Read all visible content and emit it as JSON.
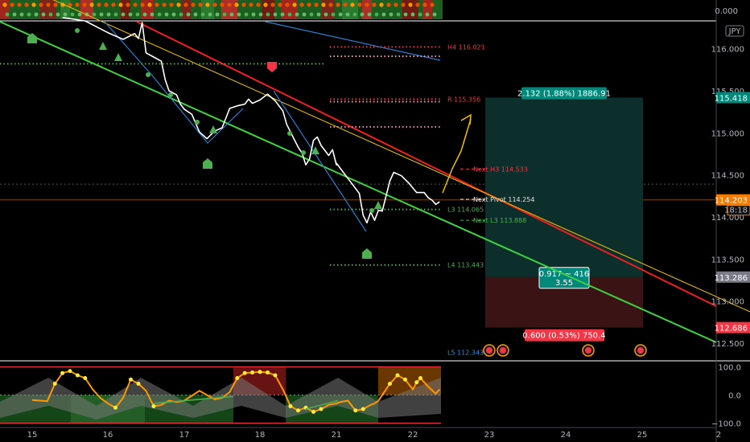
{
  "chart_data": {
    "type": "line",
    "currency_badge": "JPY",
    "x_ticks": [
      "15",
      "16",
      "17",
      "18",
      "21",
      "22",
      "23",
      "24",
      "25",
      "2"
    ],
    "y_ticks": [
      "116.000",
      "115.500",
      "115.000",
      "114.500",
      "114.000",
      "113.500",
      "113.000",
      "112.500"
    ],
    "top_strip_value": "0.000",
    "ylim": [
      112.31,
      116.32
    ],
    "price_series": [
      [
        15.4,
        116.37
      ],
      [
        15.7,
        116.33
      ],
      [
        16.0,
        116.19
      ],
      [
        16.2,
        116.11
      ],
      [
        16.35,
        116.18
      ],
      [
        16.4,
        116.12
      ],
      [
        16.45,
        116.31
      ],
      [
        16.5,
        115.95
      ],
      [
        16.6,
        115.9
      ],
      [
        16.7,
        115.85
      ],
      [
        16.75,
        115.63
      ],
      [
        16.8,
        115.5
      ],
      [
        16.9,
        115.45
      ],
      [
        16.95,
        115.34
      ],
      [
        17.0,
        115.28
      ],
      [
        17.1,
        115.22
      ],
      [
        17.2,
        115.01
      ],
      [
        17.3,
        114.93
      ],
      [
        17.4,
        115.02
      ],
      [
        17.5,
        115.06
      ],
      [
        17.6,
        115.29
      ],
      [
        17.7,
        115.32
      ],
      [
        17.8,
        115.34
      ],
      [
        17.85,
        115.4
      ],
      [
        17.9,
        115.35
      ],
      [
        18.0,
        115.39
      ],
      [
        18.1,
        115.46
      ],
      [
        18.2,
        115.38
      ],
      [
        18.3,
        115.26
      ],
      [
        18.35,
        115.1
      ],
      [
        18.5,
        114.83
      ],
      [
        18.55,
        114.76
      ],
      [
        18.6,
        114.62
      ],
      [
        18.65,
        114.69
      ],
      [
        18.7,
        114.91
      ],
      [
        18.75,
        114.95
      ],
      [
        18.8,
        114.85
      ],
      [
        18.9,
        114.73
      ],
      [
        18.95,
        114.8
      ],
      [
        19.0,
        114.62
      ],
      [
        19.05,
        114.64
      ],
      [
        21.3,
        114.28
      ],
      [
        21.35,
        114.02
      ],
      [
        21.4,
        113.93
      ],
      [
        21.45,
        114.06
      ],
      [
        21.5,
        113.96
      ],
      [
        21.55,
        114.08
      ],
      [
        21.6,
        114.07
      ],
      [
        21.7,
        114.43
      ],
      [
        21.75,
        114.53
      ],
      [
        21.85,
        114.49
      ],
      [
        21.95,
        114.4
      ],
      [
        22.05,
        114.29
      ],
      [
        22.15,
        114.29
      ],
      [
        22.2,
        114.23
      ],
      [
        22.25,
        114.2
      ],
      [
        22.3,
        114.15
      ],
      [
        22.35,
        114.18
      ]
    ],
    "last_price": "114.203",
    "countdown": "18:18",
    "price_levels": [
      {
        "label": "H4 116.021",
        "value": 116.02,
        "color": "#f23645"
      },
      {
        "label": "R 115.356",
        "value": 115.4,
        "color": "#f23645"
      },
      {
        "label": "Next H3 114.533",
        "value": 114.57,
        "color": "#f23645"
      },
      {
        "label": "Next Pivot 114.254",
        "value": 114.21,
        "color": "#e0e0e0"
      },
      {
        "label": "L3 114.065",
        "value": 114.09,
        "color": "#4caf50"
      },
      {
        "label": "Next L3 113.888",
        "value": 113.96,
        "color": "#4caf50"
      },
      {
        "label": "L4 113.443",
        "value": 113.43,
        "color": "#4caf50"
      },
      {
        "label": "L5 112.343",
        "value": 112.39,
        "color": "#2196f3"
      }
    ],
    "position": {
      "entry": "113.286",
      "target": "115.418",
      "stop": "112.686",
      "target_label": "2.132 (1.88%) 1886.91",
      "stop_label": "0.600 (0.53%) 750.4",
      "ratio_line1": "0.917 ~ 416",
      "ratio_line2": "3.55"
    },
    "oscillator_ticks": [
      "100.0",
      "0.0",
      "−100.0"
    ],
    "oscillator_ylim": [
      -110,
      110
    ],
    "oscillator_series": [
      [
        15.0,
        -18
      ],
      [
        15.2,
        -22
      ],
      [
        15.3,
        40
      ],
      [
        15.4,
        78
      ],
      [
        15.5,
        85
      ],
      [
        15.6,
        70
      ],
      [
        15.7,
        60
      ],
      [
        15.8,
        20
      ],
      [
        15.9,
        -10
      ],
      [
        16.0,
        -30
      ],
      [
        16.1,
        -45
      ],
      [
        16.2,
        -10
      ],
      [
        16.3,
        55
      ],
      [
        16.4,
        40
      ],
      [
        16.5,
        15
      ],
      [
        16.6,
        -40
      ],
      [
        16.7,
        -35
      ],
      [
        16.8,
        -20
      ],
      [
        16.9,
        -25
      ],
      [
        17.0,
        -20
      ],
      [
        17.2,
        15
      ],
      [
        17.4,
        -15
      ],
      [
        17.5,
        -10
      ],
      [
        17.6,
        10
      ],
      [
        17.7,
        60
      ],
      [
        17.8,
        78
      ],
      [
        17.9,
        80
      ],
      [
        18.0,
        82
      ],
      [
        18.1,
        80
      ],
      [
        18.2,
        70
      ],
      [
        18.3,
        20
      ],
      [
        18.4,
        -40
      ],
      [
        18.5,
        -55
      ],
      [
        18.6,
        -45
      ],
      [
        18.7,
        -60
      ],
      [
        18.8,
        -50
      ],
      [
        18.9,
        -35
      ],
      [
        19.0,
        -30
      ],
      [
        21.05,
        -25
      ],
      [
        21.15,
        -20
      ],
      [
        21.25,
        -55
      ],
      [
        21.35,
        -50
      ],
      [
        21.45,
        -35
      ],
      [
        21.5,
        -30
      ],
      [
        21.55,
        -20
      ],
      [
        21.7,
        40
      ],
      [
        21.8,
        70
      ],
      [
        21.9,
        55
      ],
      [
        22.0,
        20
      ],
      [
        22.05,
        45
      ],
      [
        22.1,
        60
      ],
      [
        22.2,
        30
      ],
      [
        22.3,
        5
      ],
      [
        22.35,
        20
      ]
    ]
  }
}
